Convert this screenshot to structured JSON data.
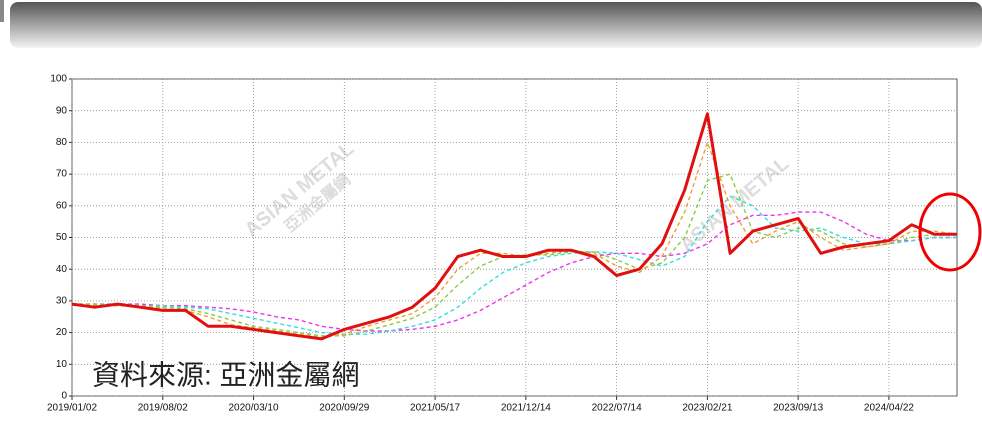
{
  "chart_data": {
    "type": "line",
    "annotation": "資料來源: 亞洲金屬網",
    "watermark": [
      "ASIAN METAL",
      "亞洲金屬網"
    ],
    "x": [
      2019.0,
      2019.15,
      2019.3,
      2019.45,
      2019.6,
      2019.75,
      2019.9,
      2020.05,
      2020.2,
      2020.35,
      2020.5,
      2020.65,
      2020.8,
      2020.95,
      2021.1,
      2021.25,
      2021.4,
      2021.55,
      2021.7,
      2021.85,
      2022.0,
      2022.15,
      2022.3,
      2022.45,
      2022.6,
      2022.75,
      2022.9,
      2023.05,
      2023.2,
      2023.35,
      2023.5,
      2023.65,
      2023.8,
      2023.95,
      2024.1,
      2024.25,
      2024.4,
      2024.55,
      2024.7,
      2024.85
    ],
    "series": [
      {
        "color": "#ee33ee",
        "dashed": true,
        "values": [
          29,
          29,
          29,
          29,
          28.5,
          28.5,
          28,
          27.5,
          26.5,
          25,
          24,
          22,
          21,
          20.5,
          20.5,
          21,
          22,
          24,
          27,
          31,
          35,
          39,
          42,
          44,
          45,
          45,
          44,
          45,
          48,
          54,
          57,
          57,
          58,
          58,
          55,
          51,
          49,
          49,
          50,
          50
        ]
      },
      {
        "color": "#33dddd",
        "dashed": true,
        "values": [
          29,
          29,
          29,
          28.5,
          28.5,
          28,
          27.5,
          26,
          24.5,
          23,
          21.5,
          20,
          19.5,
          19.5,
          20.5,
          22,
          24,
          28,
          34,
          39,
          42,
          44,
          45,
          45.5,
          45,
          43,
          41,
          44,
          55,
          63,
          60,
          53,
          52,
          53,
          50,
          48,
          48,
          49,
          50,
          50
        ]
      },
      {
        "color": "#88cc44",
        "dashed": true,
        "values": [
          29,
          29,
          28.5,
          28.5,
          28,
          27.5,
          26,
          24,
          22,
          21,
          20,
          19,
          19,
          20.5,
          22.5,
          24.5,
          28,
          35,
          41,
          44,
          44.5,
          44.5,
          45.5,
          45.5,
          43,
          40,
          42,
          50,
          68,
          70,
          52,
          50,
          53,
          52,
          48,
          47,
          48,
          50,
          51,
          51
        ]
      },
      {
        "color": "#f0a030",
        "dashed": true,
        "values": [
          29,
          28.5,
          28.5,
          28.5,
          27.5,
          27,
          25,
          22.5,
          21.5,
          20.5,
          19.5,
          18.5,
          19.5,
          22,
          24,
          26,
          31,
          40,
          45,
          45,
          44,
          45,
          46,
          45,
          41,
          39,
          44,
          58,
          80,
          60,
          48,
          52,
          55,
          50,
          46,
          47,
          48,
          52,
          52,
          51
        ]
      },
      {
        "color": "#e01010",
        "dashed": false,
        "values": [
          29,
          28,
          29,
          28,
          27,
          27,
          22,
          22,
          21,
          20,
          19,
          18,
          21,
          23,
          25,
          28,
          34,
          44,
          46,
          44,
          44,
          46,
          46,
          44,
          38,
          40,
          48,
          65,
          89,
          45,
          52,
          54,
          56,
          45,
          47,
          48,
          49,
          54,
          51,
          51
        ]
      }
    ],
    "xlim": [
      2019.0,
      2024.85
    ],
    "xticks": [
      {
        "value": 2019.0,
        "label": "2019/01/02"
      },
      {
        "value": 2019.6,
        "label": "2019/08/02"
      },
      {
        "value": 2020.2,
        "label": "2020/03/10"
      },
      {
        "value": 2020.8,
        "label": "2020/09/29"
      },
      {
        "value": 2021.4,
        "label": "2021/05/17"
      },
      {
        "value": 2022.0,
        "label": "2021/12/14"
      },
      {
        "value": 2022.6,
        "label": "2022/07/14"
      },
      {
        "value": 2023.2,
        "label": "2023/02/21"
      },
      {
        "value": 2023.8,
        "label": "2023/09/13"
      },
      {
        "value": 2024.4,
        "label": "2024/04/22"
      }
    ],
    "ylim": [
      0,
      100
    ],
    "yticks": [
      0,
      10,
      20,
      30,
      40,
      50,
      60,
      70,
      80,
      90,
      100
    ],
    "grid": true
  }
}
